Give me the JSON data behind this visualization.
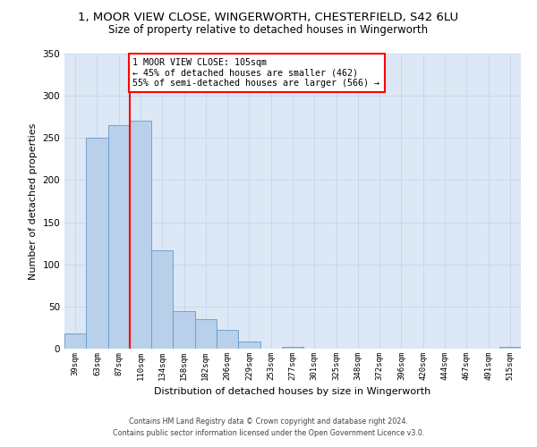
{
  "title": "1, MOOR VIEW CLOSE, WINGERWORTH, CHESTERFIELD, S42 6LU",
  "subtitle": "Size of property relative to detached houses in Wingerworth",
  "xlabel": "Distribution of detached houses by size in Wingerworth",
  "ylabel": "Number of detached properties",
  "bar_labels": [
    "39sqm",
    "63sqm",
    "87sqm",
    "110sqm",
    "134sqm",
    "158sqm",
    "182sqm",
    "206sqm",
    "229sqm",
    "253sqm",
    "277sqm",
    "301sqm",
    "325sqm",
    "348sqm",
    "372sqm",
    "396sqm",
    "420sqm",
    "444sqm",
    "467sqm",
    "491sqm",
    "515sqm"
  ],
  "bar_values": [
    18,
    250,
    265,
    270,
    117,
    45,
    35,
    22,
    9,
    0,
    2,
    0,
    0,
    0,
    0,
    0,
    0,
    0,
    0,
    0,
    2
  ],
  "bar_color": "#b8d0ea",
  "bar_edge_color": "#6699cc",
  "annotation_line_color": "red",
  "annotation_text_line1": "1 MOOR VIEW CLOSE: 105sqm",
  "annotation_text_line2": "← 45% of detached houses are smaller (462)",
  "annotation_text_line3": "55% of semi-detached houses are larger (566) →",
  "annotation_box_color": "white",
  "annotation_box_edge_color": "red",
  "ylim": [
    0,
    350
  ],
  "yticks": [
    0,
    50,
    100,
    150,
    200,
    250,
    300,
    350
  ],
  "grid_color": "#c8d8ec",
  "background_color": "#dce8f5",
  "footer_line1": "Contains HM Land Registry data © Crown copyright and database right 2024.",
  "footer_line2": "Contains public sector information licensed under the Open Government Licence v3.0."
}
